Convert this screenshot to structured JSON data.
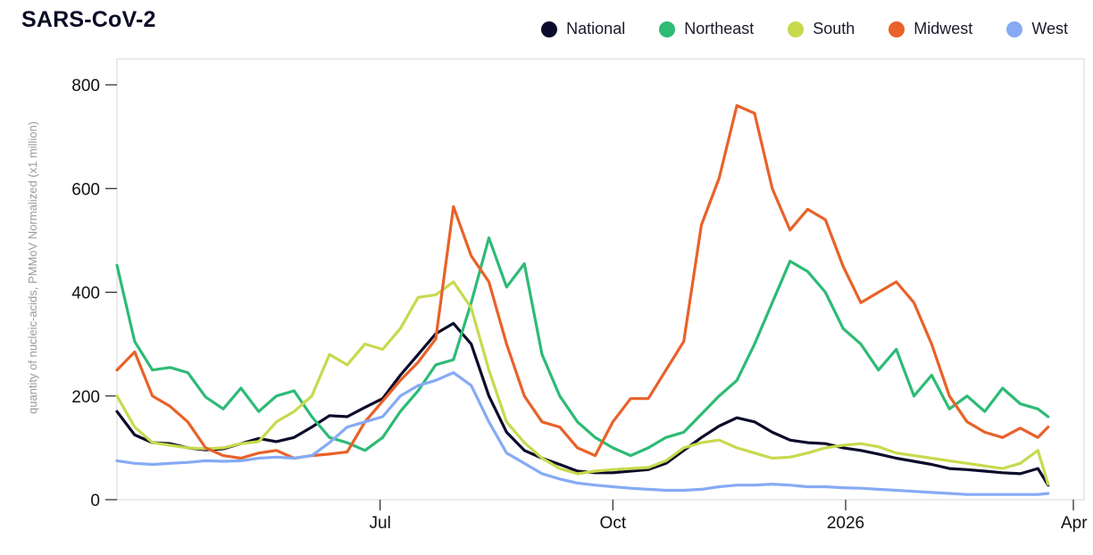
{
  "chart_data": {
    "type": "line",
    "title": "SARS-CoV-2",
    "xlabel": "",
    "ylabel": "quantity of nucleic-acids, PMMoV Normalized (x1 million)",
    "ylim": [
      0,
      850
    ],
    "yticks": [
      0,
      200,
      400,
      600,
      800
    ],
    "xticks": [
      {
        "label": "Jul",
        "day": 104
      },
      {
        "label": "Oct",
        "day": 196
      },
      {
        "label": "2026",
        "day": 288
      },
      {
        "label": "Apr",
        "day": 378
      }
    ],
    "xlim": [
      0,
      378
    ],
    "x_start_date": "2025-03-19",
    "x_days": [
      0,
      7,
      14,
      21,
      28,
      35,
      42,
      49,
      56,
      63,
      70,
      77,
      84,
      91,
      98,
      105,
      112,
      119,
      126,
      133,
      140,
      147,
      154,
      161,
      168,
      175,
      182,
      189,
      196,
      203,
      210,
      217,
      224,
      231,
      238,
      245,
      252,
      259,
      266,
      273,
      280,
      287,
      294,
      301,
      308,
      315,
      322,
      329,
      336,
      343,
      350,
      357,
      364,
      368
    ],
    "legend_position": "top-right",
    "series": [
      {
        "name": "National",
        "color": "#0b0b2b",
        "values": [
          170,
          125,
          110,
          108,
          100,
          96,
          98,
          108,
          118,
          112,
          120,
          140,
          162,
          160,
          178,
          195,
          240,
          280,
          320,
          340,
          300,
          200,
          130,
          95,
          80,
          68,
          55,
          52,
          52,
          55,
          58,
          70,
          95,
          120,
          142,
          158,
          150,
          130,
          115,
          110,
          108,
          100,
          95,
          88,
          80,
          74,
          68,
          60,
          58,
          55,
          52,
          50,
          60,
          28
        ]
      },
      {
        "name": "Northeast",
        "color": "#2dbb76",
        "values": [
          452,
          305,
          250,
          255,
          245,
          198,
          175,
          215,
          170,
          200,
          210,
          160,
          120,
          110,
          95,
          120,
          170,
          210,
          260,
          270,
          380,
          505,
          410,
          455,
          280,
          200,
          150,
          120,
          100,
          85,
          100,
          120,
          130,
          165,
          200,
          230,
          300,
          380,
          460,
          440,
          400,
          330,
          300,
          250,
          290,
          200,
          240,
          175,
          200,
          170,
          215,
          185,
          175,
          160
        ]
      },
      {
        "name": "South",
        "color": "#c8d94e",
        "values": [
          200,
          140,
          110,
          105,
          100,
          98,
          100,
          108,
          112,
          150,
          170,
          200,
          280,
          260,
          300,
          290,
          330,
          390,
          395,
          420,
          370,
          250,
          150,
          110,
          80,
          60,
          50,
          55,
          58,
          60,
          62,
          75,
          100,
          110,
          115,
          100,
          90,
          80,
          82,
          90,
          100,
          105,
          108,
          102,
          90,
          85,
          80,
          75,
          70,
          65,
          60,
          70,
          95,
          30
        ]
      },
      {
        "name": "Midwest",
        "color": "#e8622a",
        "values": [
          250,
          285,
          200,
          180,
          150,
          100,
          85,
          80,
          90,
          95,
          80,
          85,
          88,
          92,
          150,
          190,
          230,
          265,
          310,
          565,
          470,
          420,
          300,
          200,
          150,
          140,
          100,
          85,
          150,
          195,
          195,
          250,
          305,
          530,
          620,
          760,
          745,
          600,
          520,
          560,
          540,
          450,
          380,
          400,
          420,
          380,
          300,
          200,
          150,
          130,
          120,
          138,
          120,
          140
        ]
      },
      {
        "name": "West",
        "color": "#86aaf5",
        "values": [
          75,
          70,
          68,
          70,
          72,
          75,
          74,
          75,
          80,
          82,
          80,
          85,
          110,
          140,
          150,
          160,
          200,
          220,
          230,
          245,
          220,
          150,
          90,
          70,
          50,
          40,
          32,
          28,
          25,
          22,
          20,
          18,
          18,
          20,
          25,
          28,
          28,
          30,
          28,
          25,
          25,
          23,
          22,
          20,
          18,
          16,
          14,
          12,
          10,
          10,
          10,
          10,
          10,
          12
        ]
      }
    ]
  }
}
